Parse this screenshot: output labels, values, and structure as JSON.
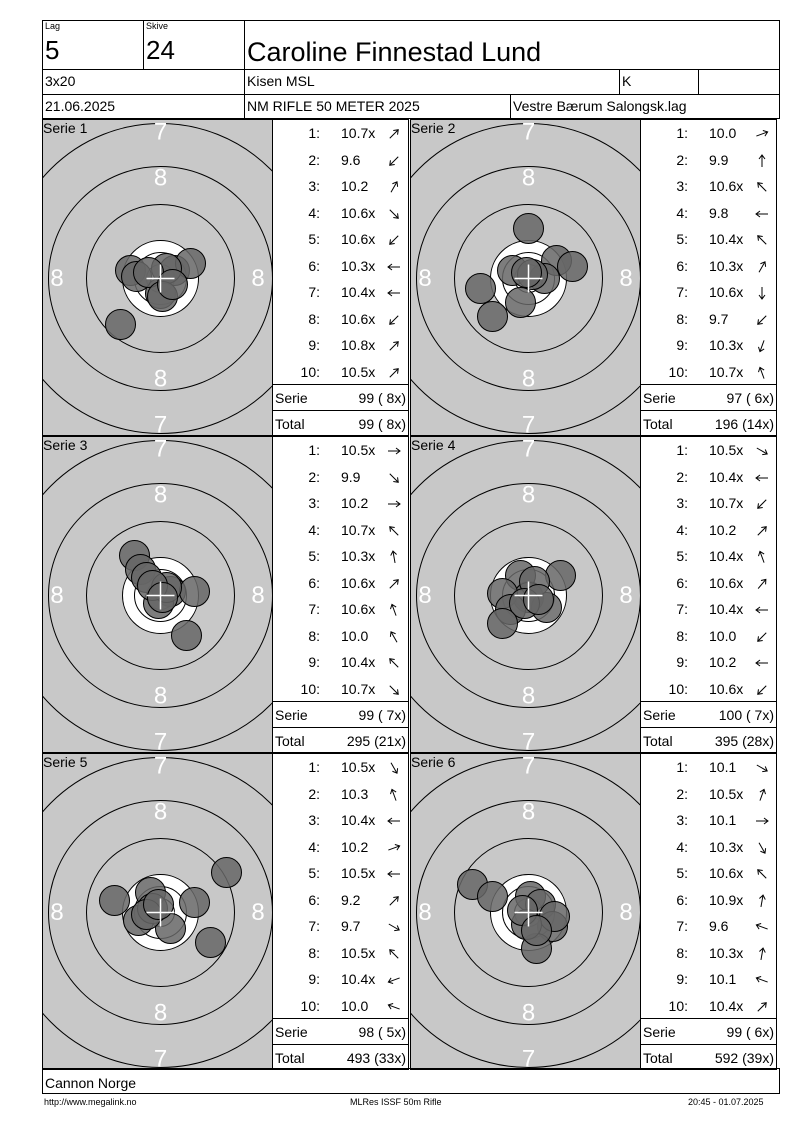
{
  "header": {
    "lag_label": "Lag",
    "lag_value": "5",
    "skive_label": "Skive",
    "skive_value": "24",
    "name": "Caroline Finnestad Lund",
    "program": "3x20",
    "club": "Kisen MSL",
    "class": "K",
    "date": "21.06.2025",
    "competition": "NM RIFLE 50 METER 2025",
    "organizer": "Vestre Bærum Salongsk.lag"
  },
  "ring_labels": {
    "outer": "7",
    "inner": "8"
  },
  "series": [
    {
      "label": "Serie 1",
      "shots": [
        {
          "n": "1:",
          "v": "10.7x",
          "dir": 45
        },
        {
          "n": "2:",
          "v": "9.6",
          "dir": 225
        },
        {
          "n": "3:",
          "v": "10.2",
          "dir": 60
        },
        {
          "n": "4:",
          "v": "10.6x",
          "dir": 315
        },
        {
          "n": "5:",
          "v": "10.6x",
          "dir": 225
        },
        {
          "n": "6:",
          "v": "10.3x",
          "dir": 180
        },
        {
          "n": "7:",
          "v": "10.4x",
          "dir": 180
        },
        {
          "n": "8:",
          "v": "10.6x",
          "dir": 225
        },
        {
          "n": "9:",
          "v": "10.8x",
          "dir": 45
        },
        {
          "n": "10:",
          "v": "10.5x",
          "dir": 45
        }
      ],
      "serie_label": "Serie",
      "serie_score": "99 ( 8x)",
      "total_label": "Total",
      "total_score": "99 ( 8x)"
    },
    {
      "label": "Serie 2",
      "shots": [
        {
          "n": "1:",
          "v": "10.0",
          "dir": 20
        },
        {
          "n": "2:",
          "v": "9.9",
          "dir": 90
        },
        {
          "n": "3:",
          "v": "10.6x",
          "dir": 135
        },
        {
          "n": "4:",
          "v": "9.8",
          "dir": 180
        },
        {
          "n": "5:",
          "v": "10.4x",
          "dir": 135
        },
        {
          "n": "6:",
          "v": "10.3x",
          "dir": 60
        },
        {
          "n": "7:",
          "v": "10.6x",
          "dir": 270
        },
        {
          "n": "8:",
          "v": "9.7",
          "dir": 225
        },
        {
          "n": "9:",
          "v": "10.3x",
          "dir": 250
        },
        {
          "n": "10:",
          "v": "10.7x",
          "dir": 110
        }
      ],
      "serie_label": "Serie",
      "serie_score": "97 ( 6x)",
      "total_label": "Total",
      "total_score": "196 (14x)"
    },
    {
      "label": "Serie 3",
      "shots": [
        {
          "n": "1:",
          "v": "10.5x",
          "dir": 0
        },
        {
          "n": "2:",
          "v": "9.9",
          "dir": 315
        },
        {
          "n": "3:",
          "v": "10.2",
          "dir": 0
        },
        {
          "n": "4:",
          "v": "10.7x",
          "dir": 135
        },
        {
          "n": "5:",
          "v": "10.3x",
          "dir": 100
        },
        {
          "n": "6:",
          "v": "10.6x",
          "dir": 45
        },
        {
          "n": "7:",
          "v": "10.6x",
          "dir": 110
        },
        {
          "n": "8:",
          "v": "10.0",
          "dir": 120
        },
        {
          "n": "9:",
          "v": "10.4x",
          "dir": 135
        },
        {
          "n": "10:",
          "v": "10.7x",
          "dir": 315
        }
      ],
      "serie_label": "Serie",
      "serie_score": "99 ( 7x)",
      "total_label": "Total",
      "total_score": "295 (21x)"
    },
    {
      "label": "Serie 4",
      "shots": [
        {
          "n": "1:",
          "v": "10.5x",
          "dir": 330
        },
        {
          "n": "2:",
          "v": "10.4x",
          "dir": 180
        },
        {
          "n": "3:",
          "v": "10.7x",
          "dir": 225
        },
        {
          "n": "4:",
          "v": "10.2",
          "dir": 45
        },
        {
          "n": "5:",
          "v": "10.4x",
          "dir": 110
        },
        {
          "n": "6:",
          "v": "10.6x",
          "dir": 50
        },
        {
          "n": "7:",
          "v": "10.4x",
          "dir": 180
        },
        {
          "n": "8:",
          "v": "10.0",
          "dir": 225
        },
        {
          "n": "9:",
          "v": "10.2",
          "dir": 180
        },
        {
          "n": "10:",
          "v": "10.6x",
          "dir": 225
        }
      ],
      "serie_label": "Serie",
      "serie_score": "100 ( 7x)",
      "total_label": "Total",
      "total_score": "395 (28x)"
    },
    {
      "label": "Serie 5",
      "shots": [
        {
          "n": "1:",
          "v": "10.5x",
          "dir": 300
        },
        {
          "n": "2:",
          "v": "10.3",
          "dir": 110
        },
        {
          "n": "3:",
          "v": "10.4x",
          "dir": 180
        },
        {
          "n": "4:",
          "v": "10.2",
          "dir": 20
        },
        {
          "n": "5:",
          "v": "10.5x",
          "dir": 180
        },
        {
          "n": "6:",
          "v": "9.2",
          "dir": 45
        },
        {
          "n": "7:",
          "v": "9.7",
          "dir": 330
        },
        {
          "n": "8:",
          "v": "10.5x",
          "dir": 135
        },
        {
          "n": "9:",
          "v": "10.4x",
          "dir": 200
        },
        {
          "n": "10:",
          "v": "10.0",
          "dir": 160
        }
      ],
      "serie_label": "Serie",
      "serie_score": "98 ( 5x)",
      "total_label": "Total",
      "total_score": "493 (33x)"
    },
    {
      "label": "Serie 6",
      "shots": [
        {
          "n": "1:",
          "v": "10.1",
          "dir": 330
        },
        {
          "n": "2:",
          "v": "10.5x",
          "dir": 70
        },
        {
          "n": "3:",
          "v": "10.1",
          "dir": 0
        },
        {
          "n": "4:",
          "v": "10.3x",
          "dir": 300
        },
        {
          "n": "5:",
          "v": "10.6x",
          "dir": 135
        },
        {
          "n": "6:",
          "v": "10.9x",
          "dir": 80
        },
        {
          "n": "7:",
          "v": "9.6",
          "dir": 160
        },
        {
          "n": "8:",
          "v": "10.3x",
          "dir": 80
        },
        {
          "n": "9:",
          "v": "10.1",
          "dir": 160
        },
        {
          "n": "10:",
          "v": "10.4x",
          "dir": 45
        }
      ],
      "serie_label": "Serie",
      "serie_score": "99 ( 6x)",
      "total_label": "Total",
      "total_score": "592 (39x)"
    }
  ],
  "footer": {
    "sponsor": "Cannon Norge",
    "url": "http://www.megalink.no",
    "software": "MLRes ISSF 50m Rifle",
    "timestamp": "20:45 - 01.07.2025"
  }
}
